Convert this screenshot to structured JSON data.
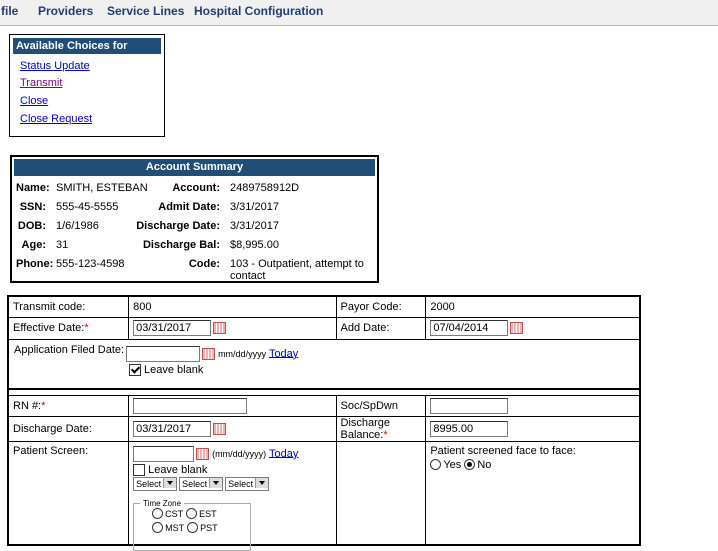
{
  "nav": [
    "file",
    "Providers",
    "Service Lines",
    "Hospital Configuration"
  ],
  "choices": {
    "title": "Available Choices for Updates",
    "links": [
      "Status Update",
      "Transmit",
      "Close",
      "Close Request"
    ]
  },
  "account_summary": {
    "title": "Account Summary",
    "rows": [
      [
        "Name:",
        "SMITH, ESTEBAN",
        "Account:",
        "2489758912D"
      ],
      [
        "SSN:",
        "555-45-5555",
        "Admit Date:",
        "3/31/2017"
      ],
      [
        "DOB:",
        "1/6/1986",
        "Discharge Date:",
        "3/31/2017"
      ],
      [
        "Age:",
        "31",
        "Discharge Bal:",
        "$8,995.00"
      ],
      [
        "Phone:",
        "555-123-4598",
        "Code:",
        "103 - Outpatient, attempt to contact"
      ]
    ]
  },
  "form": {
    "required_mark": "*",
    "transmit_code_label": "Transmit code:",
    "transmit_code": "800",
    "payor_code_label": "Payor Code:",
    "payor_code": "2000",
    "effective_date_label": "Effective Date:",
    "effective_date": "03/31/2017",
    "add_date_label": "Add Date:",
    "add_date": "07/04/2014",
    "app_filed_label": "Application Filed Date:",
    "app_filed_hint": "mm/dd/yyyy",
    "today": "Today",
    "leave_blank": "Leave blank",
    "rn_label": "RN #:",
    "soc_label": "Soc/SpDwn",
    "discharge_date_label": "Discharge Date:",
    "discharge_date": "03/31/2017",
    "discharge_balance_label": "Discharge Balance:",
    "discharge_balance": "8995.00",
    "patient_screen_label": "Patient Screen:",
    "patient_screen_hint": "(mm/dd/yyyy)",
    "select": "Select",
    "time_zone": "Time Zone",
    "zones": [
      "CST",
      "EST",
      "MST",
      "PST"
    ],
    "face_to_face_label": "Patient screened face to face:",
    "yes": "Yes",
    "no": "No"
  }
}
